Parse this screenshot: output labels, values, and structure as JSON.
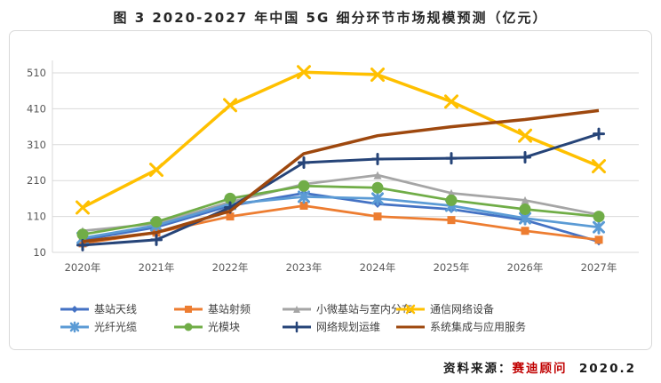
{
  "page": {
    "title": "图 3 2020-2027 年中国 5G 细分环节市场规模预测（亿元）",
    "source_prefix": "资料来源：",
    "source_org": "赛迪顾问",
    "source_date": "2020.2"
  },
  "colors": {
    "grid": "#d9d9d9",
    "axis_text": "#595959",
    "title_text": "#262626",
    "source_highlight": "#c00000"
  },
  "chart_data": {
    "type": "line",
    "title": "图 3 2020-2027 年中国 5G 细分环节市场规模预测（亿元）",
    "categories": [
      "2020年",
      "2021年",
      "2022年",
      "2023年",
      "2024年",
      "2025年",
      "2026年",
      "2027年"
    ],
    "y_ticks": [
      10,
      110,
      210,
      310,
      410,
      510
    ],
    "ylim": [
      10,
      560
    ],
    "grid": true,
    "legend_position": "bottom",
    "series": [
      {
        "name": "基站天线",
        "color": "#4472C4",
        "marker": "diamond",
        "values": [
          45,
          80,
          140,
          175,
          145,
          130,
          100,
          40
        ]
      },
      {
        "name": "基站射频",
        "color": "#ED7D31",
        "marker": "square",
        "values": [
          35,
          65,
          110,
          140,
          110,
          100,
          70,
          45
        ]
      },
      {
        "name": "小微基站与室内分布",
        "color": "#A5A5A5",
        "marker": "triangle",
        "values": [
          70,
          90,
          150,
          200,
          225,
          175,
          155,
          115
        ]
      },
      {
        "name": "通信网络设备",
        "color": "#FFC000",
        "marker": "x",
        "values": [
          135,
          240,
          420,
          512,
          505,
          430,
          335,
          250
        ]
      },
      {
        "name": "光纤光缆",
        "color": "#5B9BD5",
        "marker": "asterisk",
        "values": [
          50,
          85,
          145,
          165,
          160,
          140,
          105,
          80
        ]
      },
      {
        "name": "光模块",
        "color": "#70AD47",
        "marker": "circle",
        "values": [
          60,
          95,
          160,
          195,
          190,
          155,
          130,
          110
        ]
      },
      {
        "name": "网络规划运维",
        "color": "#264478",
        "marker": "plus",
        "values": [
          30,
          45,
          135,
          260,
          270,
          272,
          275,
          340
        ]
      },
      {
        "name": "系统集成与应用服务",
        "color": "#9E480E",
        "marker": "none",
        "values": [
          40,
          65,
          125,
          285,
          335,
          360,
          380,
          405
        ]
      }
    ]
  }
}
